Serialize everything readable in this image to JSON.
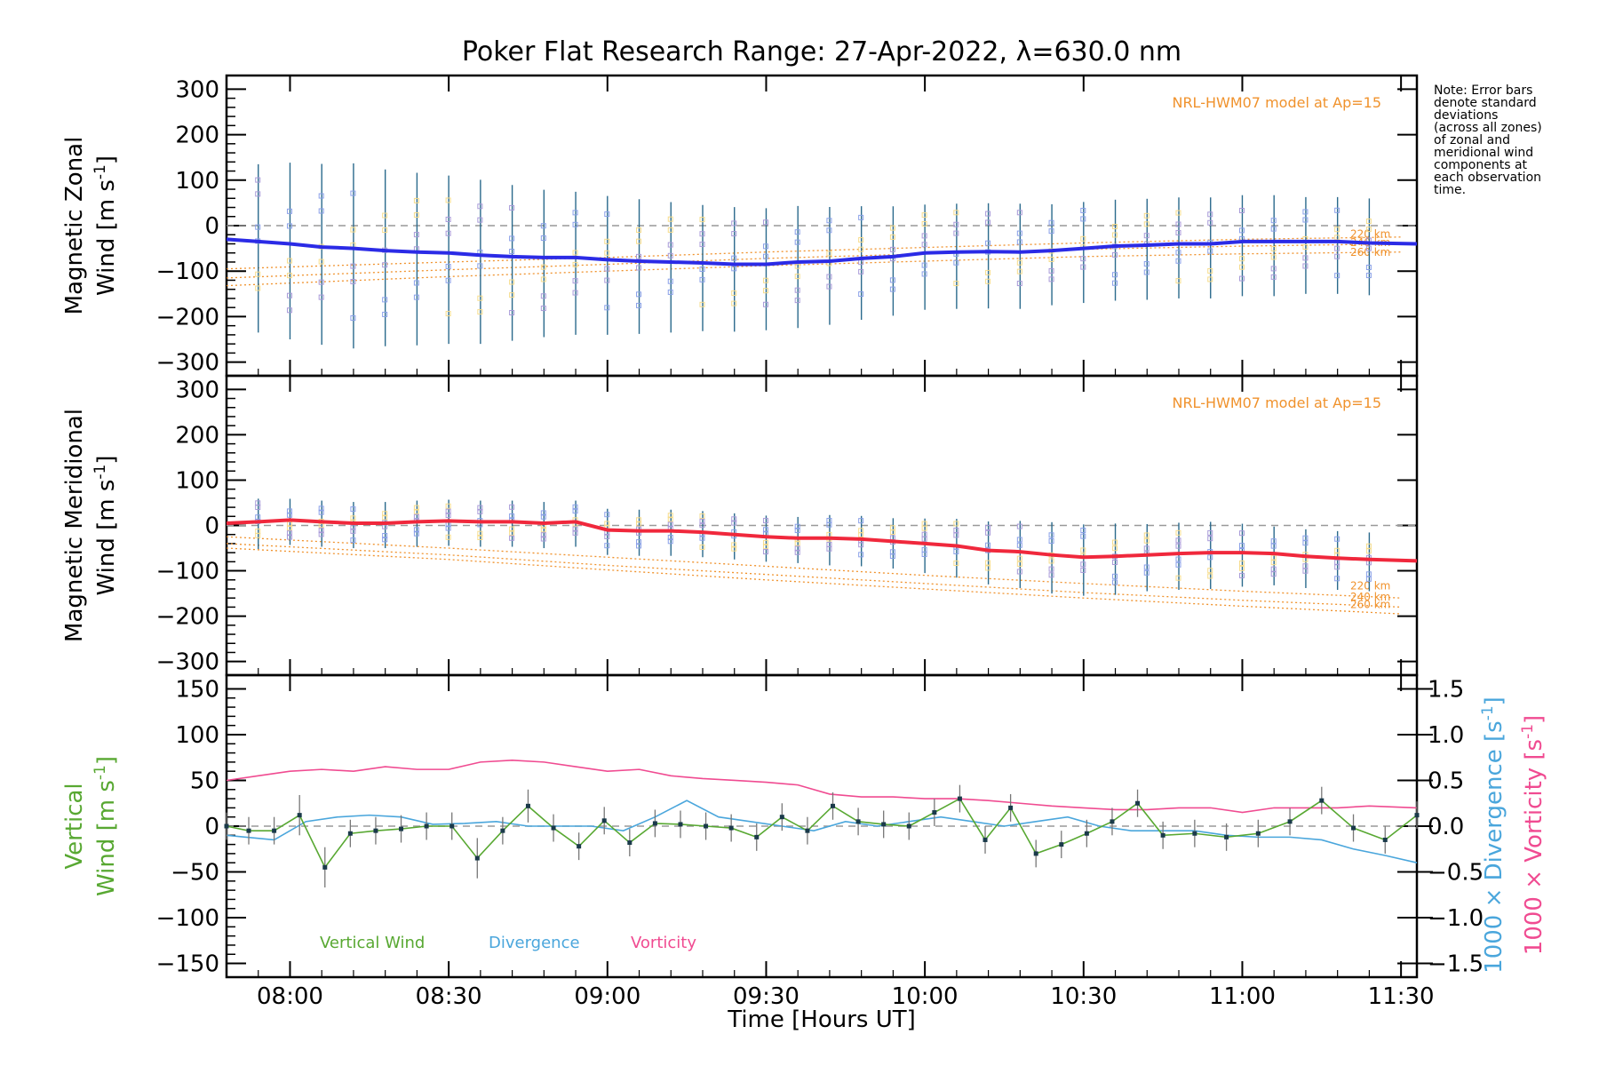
{
  "chart_data": {
    "title": "Poker Flat Research Range: 27-Apr-2022, λ=630.0 nm",
    "xlabel": "Time [Hours UT]",
    "x_range_hours": [
      7.8,
      11.55
    ],
    "x_ticks": [
      8.0,
      8.5,
      9.0,
      9.5,
      10.0,
      10.5,
      11.0,
      11.5
    ],
    "x_tick_labels": [
      "08:00",
      "08:30",
      "09:00",
      "09:30",
      "10:00",
      "10:30",
      "11:00",
      "11:30"
    ],
    "note_lines": [
      "Note: Error bars",
      "denote standard",
      "deviations",
      "(across all zones)",
      "of zonal and",
      "meridional wind",
      "components at",
      "each observation",
      "time."
    ],
    "colors": {
      "zonal": "#2b2be6",
      "meridional": "#f0283c",
      "vertical": "#58a832",
      "divergence": "#4aa6dc",
      "vorticity": "#f04b91",
      "model": "#f0922c",
      "errorbar": "#2a6a8c",
      "dashed": "#999999",
      "points_blue": "#8aa0e8",
      "points_lavender": "#a89ad8",
      "points_yellow": "#f6dc8c"
    },
    "panels": [
      {
        "id": "zonal",
        "type": "line",
        "ylabel_line1": "Magnetic Zonal",
        "ylabel_line2": "Wind [m s",
        "ylabel_sup": "-1",
        "ylabel_close": "]",
        "ylim": [
          -330,
          330
        ],
        "yticks": [
          -300,
          -200,
          -100,
          0,
          100,
          200,
          300
        ],
        "ytick_labels": [
          "−300",
          "−200",
          "−100",
          "0",
          "100",
          "200",
          "300"
        ],
        "model_label": "NRL-HWM07 model at Ap=15",
        "model_curves": [
          {
            "label": "220 km",
            "x": [
              7.8,
              8.5,
              9.0,
              9.5,
              10.0,
              10.5,
              11.0,
              11.5
            ],
            "y": [
              -95,
              -80,
              -70,
              -58,
              -48,
              -38,
              -30,
              -25
            ]
          },
          {
            "label": "240 km",
            "x": [
              7.8,
              8.5,
              9.0,
              9.5,
              10.0,
              10.5,
              11.0,
              11.5
            ],
            "y": [
              -115,
              -97,
              -85,
              -72,
              -62,
              -52,
              -45,
              -40
            ]
          },
          {
            "label": "260 km",
            "x": [
              7.8,
              8.5,
              9.0,
              9.5,
              10.0,
              10.5,
              11.0,
              11.5
            ],
            "y": [
              -132,
              -112,
              -100,
              -88,
              -78,
              -68,
              -62,
              -58
            ]
          }
        ],
        "series": [
          {
            "name": "Zonal wind",
            "x": [
              7.8,
              7.9,
              8.0,
              8.1,
              8.2,
              8.3,
              8.4,
              8.5,
              8.6,
              8.7,
              8.8,
              8.9,
              9.0,
              9.1,
              9.2,
              9.3,
              9.4,
              9.5,
              9.6,
              9.7,
              9.8,
              9.9,
              10.0,
              10.1,
              10.2,
              10.3,
              10.4,
              10.5,
              10.6,
              10.7,
              10.8,
              10.9,
              11.0,
              11.1,
              11.2,
              11.3,
              11.4,
              11.55
            ],
            "y": [
              -30,
              -35,
              -40,
              -47,
              -50,
              -55,
              -58,
              -60,
              -65,
              -68,
              -70,
              -70,
              -75,
              -78,
              -80,
              -82,
              -85,
              -85,
              -80,
              -78,
              -72,
              -68,
              -60,
              -58,
              -57,
              -58,
              -55,
              -50,
              -45,
              -43,
              -40,
              -40,
              -35,
              -35,
              -35,
              -35,
              -38,
              -40
            ],
            "err": [
              180,
              200,
              210,
              215,
              220,
              210,
              205,
              200,
              195,
              185,
              175,
              170,
              165,
              160,
              155,
              150,
              148,
              145,
              145,
              140,
              135,
              130,
              125,
              125,
              125,
              125,
              120,
              120,
              120,
              120,
              120,
              120,
              120,
              120,
              115,
              115,
              115,
              110
            ]
          }
        ]
      },
      {
        "id": "meridional",
        "type": "line",
        "ylabel_line1": "Magnetic Meridional",
        "ylabel_line2": "Wind [m s",
        "ylabel_sup": "-1",
        "ylabel_close": "]",
        "ylim": [
          -330,
          330
        ],
        "yticks": [
          -300,
          -200,
          -100,
          0,
          100,
          200,
          300
        ],
        "ytick_labels": [
          "−300",
          "−200",
          "−100",
          "0",
          "100",
          "200",
          "300"
        ],
        "model_label": "NRL-HWM07 model at Ap=15",
        "model_curves": [
          {
            "label": "220 km",
            "x": [
              7.8,
              8.5,
              9.0,
              9.5,
              10.0,
              10.5,
              11.0,
              11.5
            ],
            "y": [
              -25,
              -50,
              -70,
              -90,
              -110,
              -128,
              -145,
              -160
            ]
          },
          {
            "label": "240 km",
            "x": [
              7.8,
              8.5,
              9.0,
              9.5,
              10.0,
              10.5,
              11.0,
              11.5
            ],
            "y": [
              -40,
              -65,
              -88,
              -108,
              -128,
              -148,
              -165,
              -180
            ]
          },
          {
            "label": "260 km",
            "x": [
              7.8,
              8.5,
              9.0,
              9.5,
              10.0,
              10.5,
              11.0,
              11.5
            ],
            "y": [
              -50,
              -75,
              -98,
              -120,
              -140,
              -160,
              -178,
              -195
            ]
          }
        ],
        "series": [
          {
            "name": "Meridional wind",
            "x": [
              7.8,
              7.9,
              8.0,
              8.1,
              8.2,
              8.3,
              8.4,
              8.5,
              8.6,
              8.7,
              8.8,
              8.9,
              9.0,
              9.1,
              9.2,
              9.3,
              9.4,
              9.5,
              9.6,
              9.7,
              9.8,
              9.9,
              10.0,
              10.1,
              10.2,
              10.3,
              10.4,
              10.5,
              10.6,
              10.7,
              10.8,
              10.9,
              11.0,
              11.1,
              11.2,
              11.3,
              11.4,
              11.55
            ],
            "y": [
              5,
              8,
              12,
              8,
              5,
              5,
              8,
              10,
              8,
              8,
              5,
              8,
              -10,
              -12,
              -12,
              -15,
              -20,
              -25,
              -28,
              -28,
              -30,
              -35,
              -40,
              -45,
              -55,
              -58,
              -65,
              -70,
              -68,
              -65,
              -62,
              -60,
              -60,
              -62,
              -68,
              -72,
              -75,
              -78
            ],
            "err": [
              60,
              60,
              55,
              55,
              55,
              55,
              55,
              55,
              55,
              55,
              55,
              55,
              55,
              55,
              55,
              55,
              55,
              55,
              55,
              60,
              60,
              60,
              65,
              70,
              75,
              80,
              85,
              85,
              85,
              80,
              80,
              80,
              75,
              70,
              70,
              70,
              70,
              70
            ]
          }
        ]
      },
      {
        "id": "vertical",
        "type": "line",
        "ylabel_line1": "Vertical",
        "ylabel_line2": "Wind [m s",
        "ylabel_sup": "-1",
        "ylabel_close": "]",
        "ylim": [
          -165,
          165
        ],
        "yticks": [
          -150,
          -100,
          -50,
          0,
          50,
          100,
          150
        ],
        "ytick_labels": [
          "−150",
          "−100",
          "−50",
          "0",
          "50",
          "100",
          "150"
        ],
        "y2lim": [
          -1.65,
          1.65
        ],
        "y2ticks": [
          -1.5,
          -1.0,
          -0.5,
          0.0,
          0.5,
          1.0,
          1.5
        ],
        "y2tick_labels": [
          "−1.5",
          "−1.0",
          "−0.5",
          "0.0",
          "0.5",
          "1.0",
          "1.5"
        ],
        "y2label_div": "1000 × Divergence [s",
        "y2label_vort": "1000 × Vorticity [s",
        "y2label_sup": "-1",
        "y2label_close": "]",
        "legend": [
          "Vertical Wind",
          "Divergence",
          "Vorticity"
        ],
        "series": [
          {
            "name": "Vertical Wind",
            "x": [
              7.8,
              7.87,
              7.95,
              8.03,
              8.11,
              8.19,
              8.27,
              8.35,
              8.43,
              8.51,
              8.59,
              8.67,
              8.75,
              8.83,
              8.91,
              8.99,
              9.07,
              9.15,
              9.23,
              9.31,
              9.39,
              9.47,
              9.55,
              9.63,
              9.71,
              9.79,
              9.87,
              9.95,
              10.03,
              10.11,
              10.19,
              10.27,
              10.35,
              10.43,
              10.51,
              10.59,
              10.67,
              10.75,
              10.85,
              10.95,
              11.05,
              11.15,
              11.25,
              11.35,
              11.45,
              11.55
            ],
            "y": [
              0,
              -5,
              -5,
              12,
              -45,
              -8,
              -5,
              -3,
              0,
              0,
              -35,
              -5,
              22,
              -2,
              -22,
              6,
              -18,
              3,
              2,
              0,
              -2,
              -12,
              10,
              -5,
              22,
              5,
              2,
              0,
              15,
              30,
              -15,
              20,
              -30,
              -20,
              -8,
              5,
              25,
              -10,
              -8,
              -12,
              -8,
              5,
              28,
              -2,
              -15,
              12
            ],
            "err": [
              15,
              15,
              15,
              22,
              22,
              15,
              15,
              15,
              15,
              15,
              22,
              15,
              18,
              15,
              15,
              15,
              15,
              15,
              15,
              15,
              15,
              15,
              15,
              15,
              15,
              15,
              15,
              15,
              15,
              15,
              15,
              15,
              15,
              15,
              15,
              15,
              15,
              15,
              15,
              15,
              15,
              15,
              15,
              15,
              15,
              15
            ]
          },
          {
            "name": "Divergence",
            "axis": "y2",
            "x": [
              7.8,
              7.95,
              8.05,
              8.15,
              8.25,
              8.35,
              8.45,
              8.55,
              8.65,
              8.75,
              8.85,
              8.95,
              9.05,
              9.15,
              9.25,
              9.35,
              9.45,
              9.55,
              9.65,
              9.75,
              9.85,
              9.95,
              10.05,
              10.15,
              10.25,
              10.35,
              10.45,
              10.55,
              10.65,
              10.75,
              10.85,
              10.95,
              11.05,
              11.15,
              11.25,
              11.35,
              11.45,
              11.55
            ],
            "y": [
              -0.1,
              -0.15,
              0.05,
              0.1,
              0.12,
              0.1,
              0.02,
              0.03,
              0.05,
              0.0,
              0.0,
              0.0,
              -0.05,
              0.1,
              0.28,
              0.1,
              0.05,
              0.0,
              -0.05,
              0.05,
              0.0,
              0.05,
              0.1,
              0.05,
              0.0,
              0.05,
              0.1,
              0.0,
              -0.05,
              -0.05,
              -0.05,
              -0.1,
              -0.12,
              -0.12,
              -0.15,
              -0.25,
              -0.32,
              -0.4
            ]
          },
          {
            "name": "Vorticity",
            "axis": "y2",
            "x": [
              7.8,
              7.9,
              8.0,
              8.1,
              8.2,
              8.3,
              8.4,
              8.5,
              8.6,
              8.7,
              8.8,
              8.9,
              9.0,
              9.1,
              9.2,
              9.3,
              9.4,
              9.5,
              9.6,
              9.7,
              9.8,
              9.9,
              10.0,
              10.1,
              10.2,
              10.3,
              10.4,
              10.5,
              10.6,
              10.7,
              10.8,
              10.9,
              11.0,
              11.1,
              11.2,
              11.3,
              11.4,
              11.55
            ],
            "y": [
              0.5,
              0.55,
              0.6,
              0.62,
              0.6,
              0.65,
              0.62,
              0.62,
              0.7,
              0.72,
              0.7,
              0.65,
              0.6,
              0.62,
              0.55,
              0.52,
              0.5,
              0.48,
              0.45,
              0.35,
              0.32,
              0.32,
              0.3,
              0.3,
              0.28,
              0.25,
              0.22,
              0.2,
              0.18,
              0.18,
              0.2,
              0.2,
              0.15,
              0.2,
              0.2,
              0.2,
              0.22,
              0.2
            ]
          }
        ]
      }
    ]
  }
}
